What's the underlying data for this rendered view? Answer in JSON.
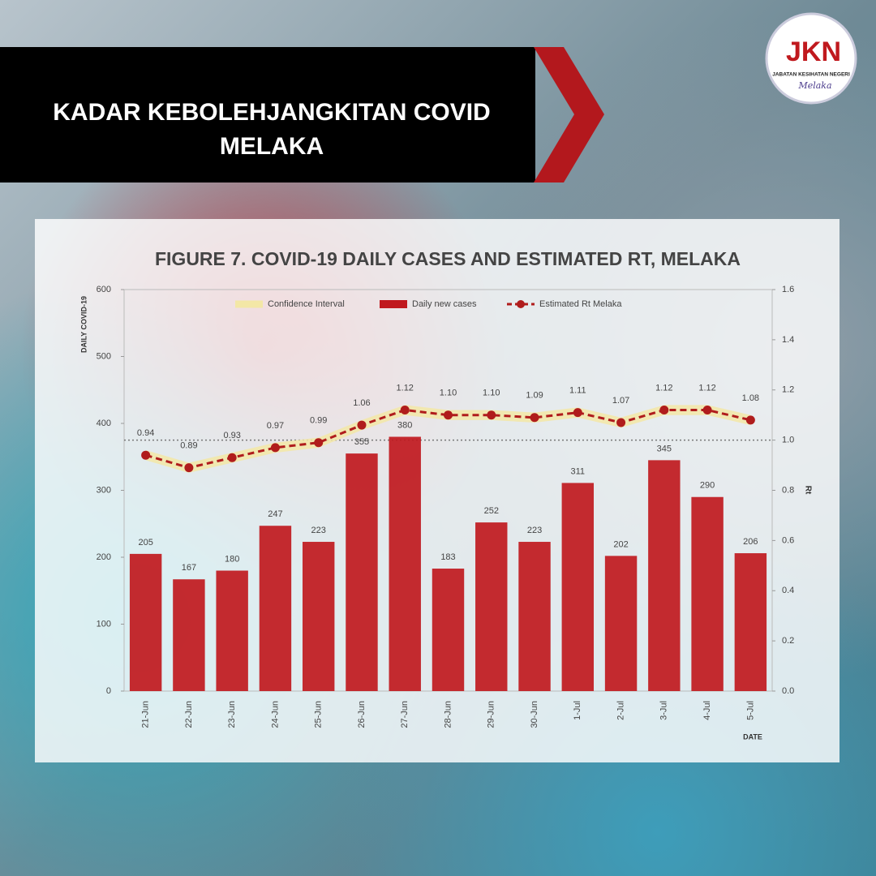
{
  "header": {
    "title": "KADAR KEBOLEHJANGKITAN COVID MELAKA"
  },
  "logo": {
    "mark": "JKN",
    "org": "JABATAN KESIHATAN NEGERI",
    "state": "Melaka"
  },
  "chart_data": {
    "type": "bar",
    "title": "FIGURE 7. COVID-19 DAILY CASES AND ESTIMATED RT, MELAKA",
    "y_label": "DAILY COVID-19",
    "y2_label": "Rt",
    "x_label": "DATE",
    "categories": [
      "21-Jun",
      "22-Jun",
      "23-Jun",
      "24-Jun",
      "25-Jun",
      "26-Jun",
      "27-Jun",
      "28-Jun",
      "29-Jun",
      "30-Jun",
      "1-Jul",
      "2-Jul",
      "3-Jul",
      "4-Jul",
      "5-Jul"
    ],
    "series": [
      {
        "name": "Daily new cases",
        "type": "bar",
        "color": "#c0191e",
        "values": [
          205,
          167,
          180,
          247,
          223,
          355,
          380,
          183,
          252,
          223,
          311,
          202,
          345,
          290,
          206
        ]
      },
      {
        "name": "Estimated Rt Melaka",
        "type": "line",
        "axis": "y2",
        "color": "#b01c1c",
        "values": [
          0.94,
          0.89,
          0.93,
          0.97,
          0.99,
          1.06,
          1.12,
          1.1,
          1.1,
          1.09,
          1.11,
          1.07,
          1.12,
          1.12,
          1.08
        ],
        "value_labels": [
          "0.94",
          "0.89",
          "0.93",
          "0.97",
          "0.99",
          "1.06",
          "1.12",
          "1.10",
          "1.10",
          "1.09",
          "1.11",
          "1.07",
          "1.12",
          "1.12",
          "1.08"
        ]
      },
      {
        "name": "Confidence Interval",
        "type": "band",
        "axis": "y2",
        "color": "#f3e7a6",
        "lower": [
          0.92,
          0.87,
          0.91,
          0.95,
          0.97,
          1.04,
          1.1,
          1.08,
          1.08,
          1.07,
          1.09,
          1.05,
          1.1,
          1.1,
          1.06
        ],
        "upper": [
          0.96,
          0.91,
          0.95,
          0.99,
          1.01,
          1.08,
          1.14,
          1.12,
          1.12,
          1.11,
          1.13,
          1.09,
          1.14,
          1.14,
          1.1
        ]
      }
    ],
    "ylim": [
      0,
      600
    ],
    "yticks": [
      0,
      100,
      200,
      300,
      400,
      500,
      600
    ],
    "y2lim": [
      0,
      1.6
    ],
    "y2ticks": [
      {
        "value": 0,
        "label": "0.0"
      },
      0.2,
      0.4,
      0.6,
      0.8,
      {
        "value": 1,
        "label": "1.0"
      },
      1.2,
      1.4,
      1.6
    ],
    "y2_reference": 1,
    "legend_order": [
      2,
      0,
      1
    ]
  }
}
